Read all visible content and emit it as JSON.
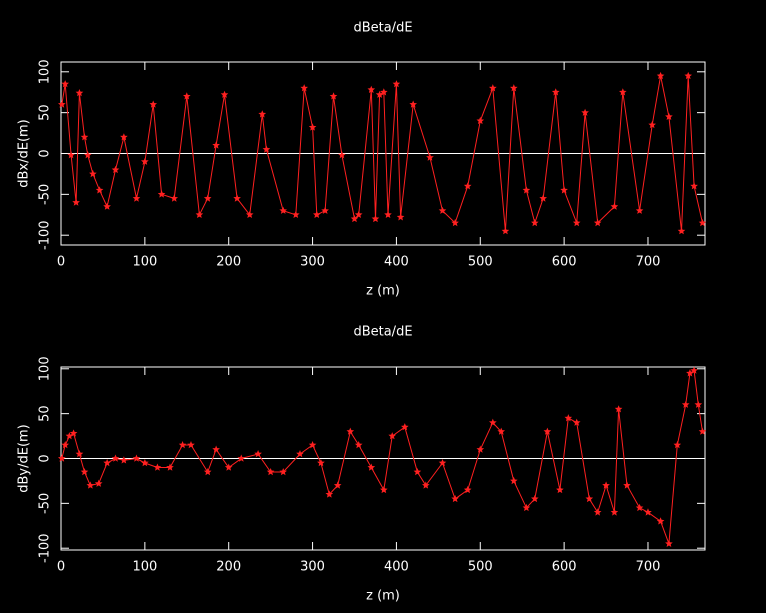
{
  "chart_data": [
    {
      "type": "line",
      "title": "dBeta/dE",
      "xlabel": "z (m)",
      "ylabel": "dBx/dE(m)",
      "color": "#ff2020",
      "marker": "star",
      "zero_line": true,
      "x": [
        1,
        5,
        12,
        18,
        22,
        28,
        32,
        38,
        46,
        55,
        65,
        75,
        90,
        100,
        110,
        120,
        135,
        150,
        165,
        175,
        185,
        195,
        210,
        225,
        240,
        245,
        265,
        280,
        290,
        300,
        305,
        315,
        325,
        335,
        350,
        355,
        370,
        375,
        380,
        385,
        390,
        400,
        405,
        420,
        440,
        455,
        470,
        485,
        500,
        515,
        530,
        540,
        555,
        565,
        575,
        590,
        600,
        615,
        625,
        640,
        660,
        670,
        690,
        705,
        715,
        725,
        740,
        748,
        755,
        765
      ],
      "values": [
        60,
        85,
        -2,
        -60,
        74,
        20,
        -2,
        -25,
        -45,
        -65,
        -20,
        20,
        -55,
        -10,
        60,
        -50,
        -55,
        70,
        -75,
        -55,
        10,
        72,
        -55,
        -75,
        48,
        5,
        -70,
        -75,
        80,
        32,
        -75,
        -70,
        70,
        -2,
        -80,
        -75,
        78,
        -80,
        72,
        75,
        -75,
        85,
        -78,
        60,
        -5,
        -70,
        -85,
        -40,
        40,
        80,
        -95,
        80,
        -45,
        -85,
        -55,
        75,
        -45,
        -85,
        50,
        -85,
        -65,
        75,
        -70,
        35,
        95,
        45,
        -95,
        95,
        -40,
        -85
      ],
      "xlim": [
        0,
        768
      ],
      "ylim": [
        -112,
        112
      ],
      "xticks": [
        0,
        100,
        200,
        300,
        400,
        500,
        600,
        700
      ],
      "yticks": [
        -100,
        -50,
        0,
        50,
        100
      ]
    },
    {
      "type": "line",
      "title": "dBeta/dE",
      "xlabel": "z (m)",
      "ylabel": "dBy/dE(m)",
      "color": "#ff2020",
      "marker": "star",
      "zero_line": true,
      "x": [
        1,
        5,
        10,
        15,
        22,
        28,
        35,
        45,
        55,
        65,
        75,
        90,
        100,
        115,
        130,
        145,
        155,
        175,
        185,
        200,
        215,
        235,
        250,
        265,
        285,
        300,
        310,
        320,
        330,
        345,
        355,
        370,
        385,
        395,
        410,
        425,
        435,
        455,
        470,
        485,
        500,
        515,
        525,
        540,
        555,
        565,
        580,
        595,
        605,
        615,
        630,
        640,
        650,
        660,
        665,
        675,
        690,
        700,
        715,
        725,
        735,
        745,
        750,
        755,
        760,
        765
      ],
      "values": [
        0,
        15,
        25,
        28,
        5,
        -15,
        -30,
        -28,
        -5,
        0,
        -2,
        0,
        -5,
        -10,
        -10,
        15,
        15,
        -15,
        10,
        -10,
        0,
        5,
        -15,
        -15,
        5,
        15,
        -5,
        -40,
        -30,
        30,
        15,
        -10,
        -35,
        25,
        35,
        -15,
        -30,
        -5,
        -45,
        -35,
        10,
        40,
        30,
        -25,
        -55,
        -45,
        30,
        -35,
        45,
        40,
        -45,
        -60,
        -30,
        -60,
        55,
        -30,
        -55,
        -60,
        -70,
        -95,
        15,
        60,
        95,
        98,
        60,
        30
      ],
      "xlim": [
        0,
        768
      ],
      "ylim": [
        -102,
        102
      ],
      "xticks": [
        0,
        100,
        200,
        300,
        400,
        500,
        600,
        700
      ],
      "yticks": [
        -100,
        -50,
        0,
        50,
        100
      ]
    }
  ]
}
